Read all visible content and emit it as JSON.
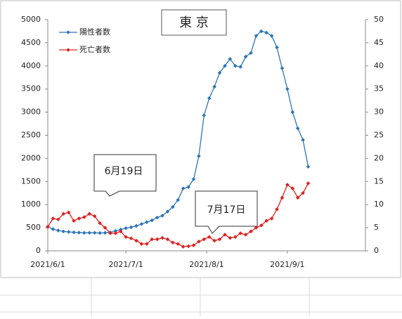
{
  "chart_data": {
    "type": "line",
    "title": "東 京",
    "x": [
      "2021-06-01",
      "2021-06-03",
      "2021-06-05",
      "2021-06-07",
      "2021-06-09",
      "2021-06-11",
      "2021-06-13",
      "2021-06-15",
      "2021-06-17",
      "2021-06-19",
      "2021-06-21",
      "2021-06-23",
      "2021-06-25",
      "2021-06-27",
      "2021-06-29",
      "2021-07-01",
      "2021-07-03",
      "2021-07-05",
      "2021-07-07",
      "2021-07-09",
      "2021-07-11",
      "2021-07-13",
      "2021-07-15",
      "2021-07-17",
      "2021-07-19",
      "2021-07-21",
      "2021-07-23",
      "2021-07-25",
      "2021-07-27",
      "2021-07-29",
      "2021-07-31",
      "2021-08-02",
      "2021-08-04",
      "2021-08-06",
      "2021-08-08",
      "2021-08-10",
      "2021-08-12",
      "2021-08-14",
      "2021-08-16",
      "2021-08-18",
      "2021-08-20",
      "2021-08-22",
      "2021-08-24",
      "2021-08-26",
      "2021-08-28",
      "2021-08-30",
      "2021-09-01",
      "2021-09-03",
      "2021-09-05",
      "2021-09-07",
      "2021-09-09"
    ],
    "series": [
      {
        "name": "陽性者数",
        "color": "#2e75b6",
        "axis": "y",
        "values": [
          520,
          470,
          440,
          420,
          410,
          400,
          395,
          390,
          390,
          390,
          385,
          390,
          400,
          430,
          460,
          490,
          510,
          540,
          580,
          620,
          660,
          720,
          760,
          850,
          950,
          1100,
          1350,
          1380,
          1550,
          2050,
          2930,
          3300,
          3550,
          3850,
          4000,
          4150,
          4000,
          3980,
          4200,
          4280,
          4650,
          4750,
          4720,
          4650,
          4400,
          3950,
          3500,
          3000,
          2650,
          2400,
          1820
        ]
      },
      {
        "name": "死亡者数",
        "color": "#e02020",
        "axis": "y2",
        "values": [
          5.2,
          7,
          6.8,
          8,
          8.3,
          6.5,
          7,
          7.3,
          8,
          7.5,
          6,
          5,
          3.8,
          3.8,
          4.2,
          3,
          2.7,
          2.2,
          1.5,
          1.5,
          2.5,
          2.5,
          2.8,
          2.5,
          1.8,
          1.5,
          0.9,
          1,
          1.2,
          2,
          2.5,
          3,
          2.2,
          2.5,
          3.5,
          2.8,
          3,
          3.8,
          3.5,
          4.2,
          5,
          5.5,
          6.5,
          7,
          9,
          11.5,
          14.3,
          13.5,
          11.5,
          12.5,
          14.6
        ]
      }
    ],
    "xlim": [
      "2021-06-01",
      "2021-10-01"
    ],
    "xticks": [
      {
        "value": "2021-06-01",
        "label": "2021/6/1"
      },
      {
        "value": "2021-07-01",
        "label": "2021/7/1"
      },
      {
        "value": "2021-08-01",
        "label": "2021/8/1"
      },
      {
        "value": "2021-09-01",
        "label": "2021/9/1"
      }
    ],
    "ylim": [
      0,
      5000
    ],
    "yticks": [
      0,
      500,
      1000,
      1500,
      2000,
      2500,
      3000,
      3500,
      4000,
      4500,
      5000
    ],
    "y2lim": [
      0,
      50
    ],
    "y2ticks": [
      0,
      5,
      10,
      15,
      20,
      25,
      30,
      35,
      40,
      45,
      50
    ],
    "annotations": [
      "6月19日",
      "7月17日"
    ],
    "legend": "top-left"
  }
}
